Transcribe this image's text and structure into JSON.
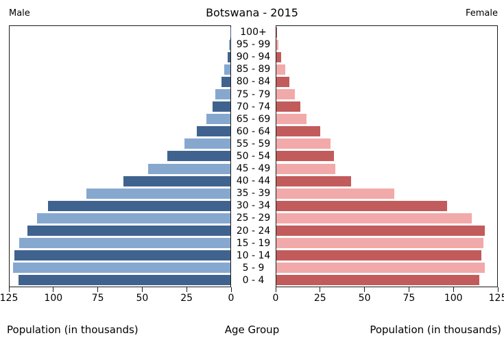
{
  "figure": {
    "title": "Botswana - 2015",
    "left_header": "Male",
    "right_header": "Female"
  },
  "axis": {
    "xlabel_left": "Population (in thousands)",
    "xlabel_center": "Age Group",
    "xlabel_right": "Population (in thousands)",
    "xmax": 125,
    "tick_values": [
      0,
      25,
      50,
      75,
      100,
      125
    ]
  },
  "colors": {
    "male_dark": "#3F638E",
    "male_light": "#86A8CF",
    "female_dark": "#C25B5B",
    "female_light": "#F2A9A9",
    "plot_border": "#1A1A1A",
    "background": "#FFFFFF"
  },
  "chart_data": {
    "type": "bar",
    "subtype": "population-pyramid",
    "title": "Botswana - 2015",
    "unit": "thousands of people",
    "xlabel": "Population (in thousands)",
    "ylabel": "Age Group",
    "xlim": [
      0,
      125
    ],
    "grid": false,
    "legend_position": "none",
    "bar_color_pattern": "alternating dark/light per row, bottom row (0 - 4) dark",
    "categories": [
      "100+",
      "95 - 99",
      "90 - 94",
      "85 - 89",
      "80 - 84",
      "75 - 79",
      "70 - 74",
      "65 - 69",
      "60 - 64",
      "55 - 59",
      "50 - 54",
      "45 - 49",
      "40 - 44",
      "35 - 39",
      "30 - 34",
      "25 - 29",
      "20 - 24",
      "15 - 19",
      "10 - 14",
      "5 - 9",
      "0 - 4"
    ],
    "series": [
      {
        "name": "Male",
        "side": "left",
        "values": [
          0.1,
          0.9,
          1.7,
          3.5,
          5.2,
          8.6,
          10.2,
          13.4,
          18.9,
          26.0,
          35.9,
          46.7,
          60.7,
          81.7,
          103.4,
          109.5,
          115.0,
          119.4,
          122.4,
          122.9,
          120.1
        ]
      },
      {
        "name": "Female",
        "side": "right",
        "values": [
          0.3,
          1.2,
          2.6,
          4.9,
          7.4,
          10.6,
          13.6,
          17.1,
          24.9,
          30.6,
          32.6,
          33.5,
          42.2,
          66.8,
          96.6,
          110.8,
          118.0,
          117.4,
          116.0,
          118.2,
          115.1
        ]
      }
    ]
  }
}
